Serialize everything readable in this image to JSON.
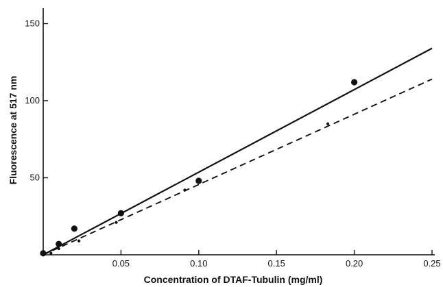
{
  "chart_data": {
    "type": "scatter",
    "title": "",
    "xlabel": "Concentration of DTAF-Tubulin (mg/ml)",
    "ylabel": "Fluorescence at 517 nm",
    "xlim": [
      0,
      0.25
    ],
    "ylim": [
      0,
      160
    ],
    "x_ticks": [
      0.05,
      0.1,
      0.15,
      0.2,
      0.25
    ],
    "x_tick_labels": [
      "0.05",
      "0.10",
      "0.15",
      "0.20",
      "0.25"
    ],
    "y_ticks": [
      50,
      100,
      150
    ],
    "y_tick_labels": [
      "50",
      "100",
      "150"
    ],
    "grid": false,
    "legend": "none",
    "series": [
      {
        "marker": "large-dot",
        "line": "solid",
        "color": "#111111",
        "x": [
          0.0,
          0.01,
          0.02,
          0.05,
          0.1,
          0.2
        ],
        "y": [
          1,
          7,
          17,
          27,
          48,
          112
        ],
        "fit": [
          [
            0.0,
            0.0
          ],
          [
            0.25,
            134
          ]
        ]
      },
      {
        "marker": "small-dot",
        "line": "dashed",
        "color": "#111111",
        "x": [
          0.005,
          0.01,
          0.023,
          0.047,
          0.091,
          0.183
        ],
        "y": [
          1,
          4,
          9,
          21,
          42,
          85
        ],
        "fit": [
          [
            0.0,
            0.0
          ],
          [
            0.25,
            114
          ]
        ]
      }
    ]
  }
}
